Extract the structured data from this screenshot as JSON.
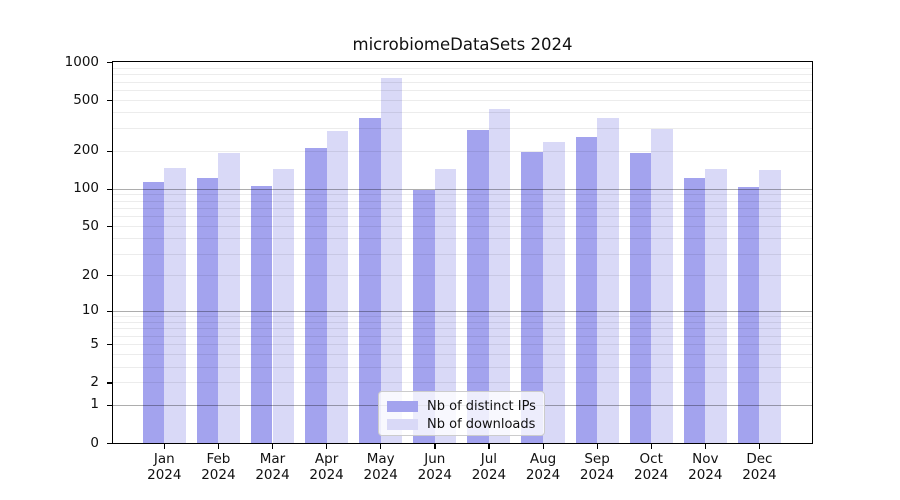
{
  "chart_data": {
    "type": "bar",
    "title": "microbiomeDataSets 2024",
    "categories": [
      {
        "month": "Jan",
        "year": "2024"
      },
      {
        "month": "Feb",
        "year": "2024"
      },
      {
        "month": "Mar",
        "year": "2024"
      },
      {
        "month": "Apr",
        "year": "2024"
      },
      {
        "month": "May",
        "year": "2024"
      },
      {
        "month": "Jun",
        "year": "2024"
      },
      {
        "month": "Jul",
        "year": "2024"
      },
      {
        "month": "Aug",
        "year": "2024"
      },
      {
        "month": "Sep",
        "year": "2024"
      },
      {
        "month": "Oct",
        "year": "2024"
      },
      {
        "month": "Nov",
        "year": "2024"
      },
      {
        "month": "Dec",
        "year": "2024"
      }
    ],
    "series": [
      {
        "name": "Nb of distinct IPs",
        "color": "#a3a3ee",
        "values": [
          113,
          122,
          105,
          210,
          365,
          97,
          290,
          195,
          255,
          190,
          121,
          103
        ]
      },
      {
        "name": "Nb of downloads",
        "color": "#d9d9f7",
        "values": [
          145,
          190,
          143,
          285,
          750,
          143,
          430,
          235,
          360,
          295,
          142,
          141
        ]
      }
    ],
    "y_axis": {
      "scale": "log1p",
      "range": [
        0,
        1000
      ],
      "ticks": [
        0,
        1,
        2,
        5,
        10,
        20,
        50,
        100,
        200,
        500,
        1000
      ],
      "major_gridlines": [
        1,
        10,
        100
      ],
      "minor_gridline_decades": [
        1,
        10,
        100
      ]
    },
    "x_axis": {
      "tick_label_format": "month newline year"
    },
    "legend": {
      "position": "lower center"
    },
    "grid": true,
    "colors": {
      "background": "#ffffff",
      "spine": "#000000",
      "grid_minor": "#ededed",
      "grid_major": "#adadad"
    }
  }
}
